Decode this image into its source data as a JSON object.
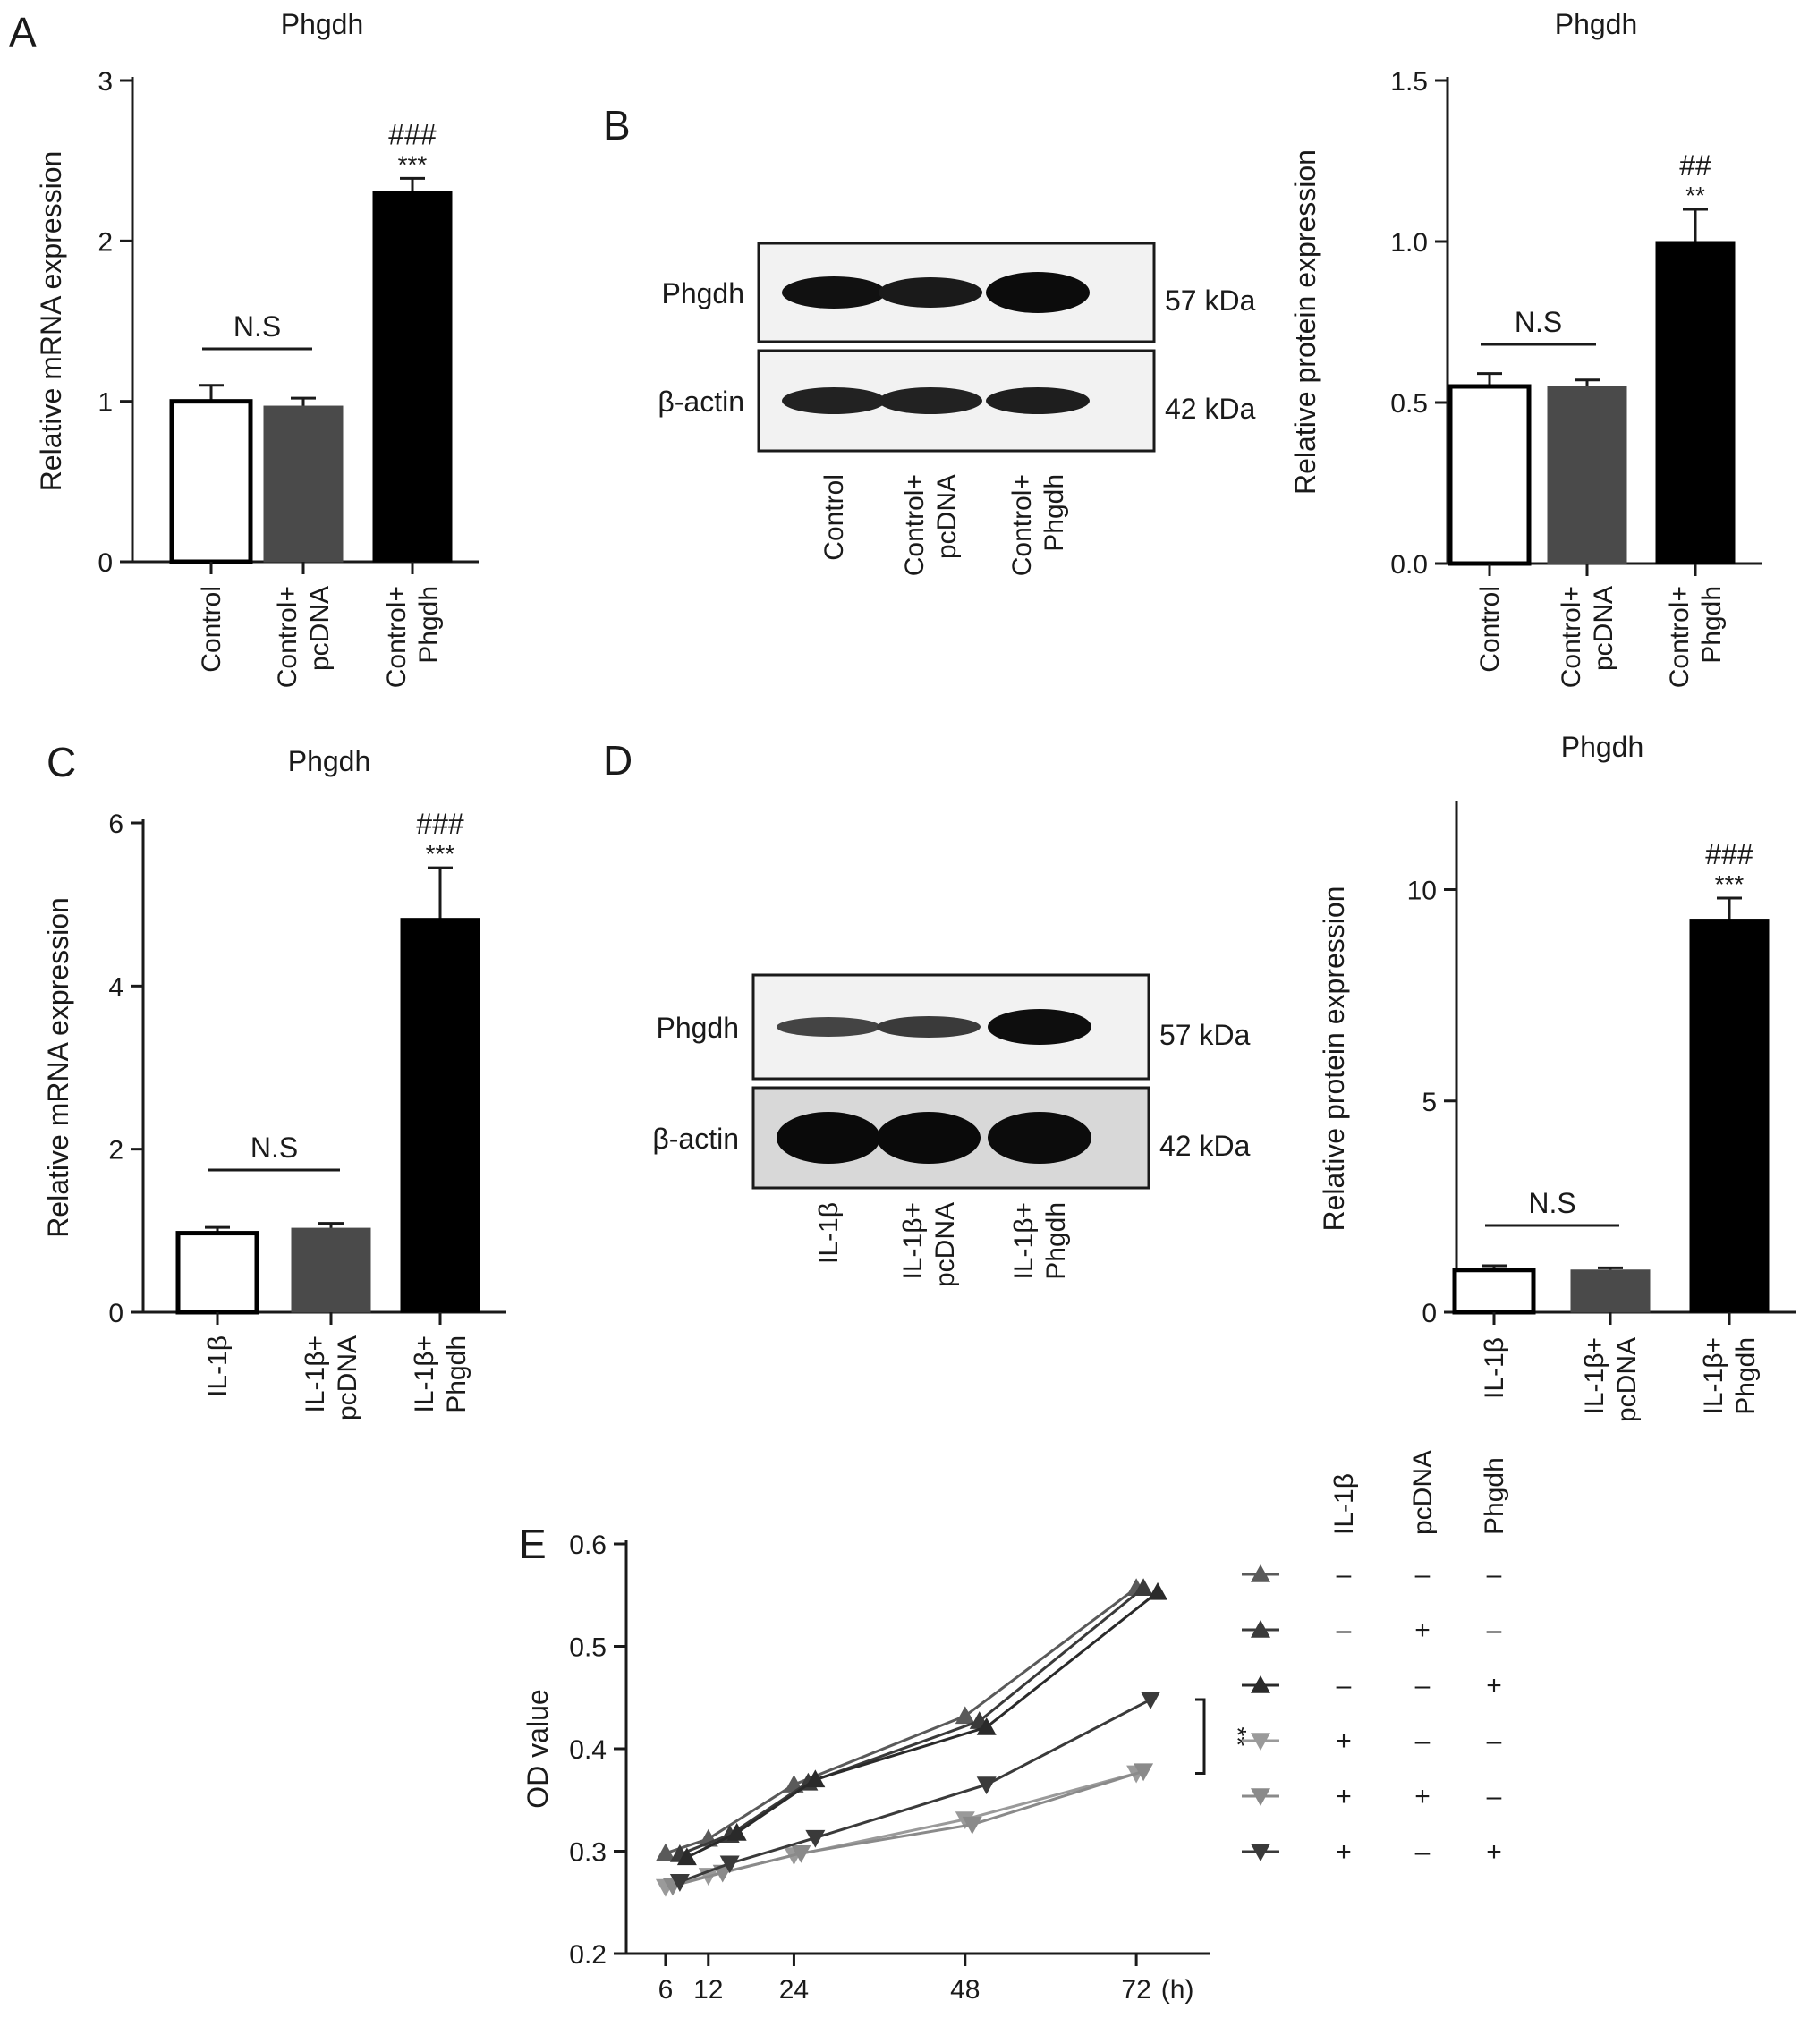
{
  "panels": {
    "A": {
      "letter": "A",
      "chart": {
        "type": "bar",
        "title": "Phgdh",
        "ylabel": "Relative mRNA expression",
        "ylim": [
          0,
          3
        ],
        "ticks": [
          "0",
          "1",
          "2",
          "3"
        ],
        "categories": [
          [
            "Control"
          ],
          [
            "Control+",
            "pcDNA"
          ],
          [
            "Control+",
            "Phgdh"
          ]
        ],
        "values": [
          1.0,
          0.97,
          2.31
        ],
        "errors": [
          0.1,
          0.05,
          0.08
        ],
        "colors": [
          "#ffffff",
          "#4a4a4a",
          "#000000"
        ],
        "significance": {
          "ns": "N.S",
          "stars": "***",
          "hashes": "###"
        }
      }
    },
    "B": {
      "letter": "B",
      "chart": {
        "type": "bar",
        "title": "Phgdh",
        "ylabel": "Relative protein expression",
        "ylim": [
          0,
          1.5
        ],
        "ticks": [
          "0.0",
          "0.5",
          "1.0",
          "1.5"
        ],
        "categories": [
          [
            "Control"
          ],
          [
            "Control+",
            "pcDNA"
          ],
          [
            "Control+",
            "Phgdh"
          ]
        ],
        "values": [
          0.55,
          0.55,
          1.0
        ],
        "errors": [
          0.04,
          0.02,
          0.1
        ],
        "colors": [
          "#ffffff",
          "#4a4a4a",
          "#000000"
        ],
        "significance": {
          "ns": "N.S",
          "stars": "**",
          "hashes": "##"
        }
      },
      "blot": {
        "rows": [
          {
            "label": "Phgdh",
            "kda": "57 kDa"
          },
          {
            "label": "β-actin",
            "kda": "42 kDa"
          }
        ],
        "lanes": [
          [
            "Control"
          ],
          [
            "Control+",
            "pcDNA"
          ],
          [
            "Control+",
            "Phgdh"
          ]
        ]
      }
    },
    "C": {
      "letter": "C",
      "chart": {
        "type": "bar",
        "title": "Phgdh",
        "ylabel": "Relative mRNA expression",
        "ylim": [
          0,
          6
        ],
        "ticks": [
          "0",
          "2",
          "4",
          "6"
        ],
        "categories": [
          [
            "IL-1β"
          ],
          [
            "IL-1β+",
            "pcDNA"
          ],
          [
            "IL-1β+",
            "Phgdh"
          ]
        ],
        "values": [
          0.97,
          1.03,
          4.83
        ],
        "errors": [
          0.07,
          0.06,
          0.62
        ],
        "colors": [
          "#ffffff",
          "#4a4a4a",
          "#000000"
        ],
        "significance": {
          "ns": "N.S",
          "stars": "***",
          "hashes": "###"
        }
      }
    },
    "D": {
      "letter": "D",
      "chart": {
        "type": "bar",
        "title": "Phgdh",
        "ylabel": "Relative protein expression",
        "ylim": [
          0,
          12
        ],
        "ticks": [
          "0",
          "5",
          "10"
        ],
        "categories": [
          [
            "IL-1β"
          ],
          [
            "IL-1β+",
            "pcDNA"
          ],
          [
            "IL-1β+",
            "Phgdh"
          ]
        ],
        "values": [
          1.0,
          1.0,
          9.3
        ],
        "errors": [
          0.1,
          0.05,
          0.5
        ],
        "colors": [
          "#ffffff",
          "#4a4a4a",
          "#000000"
        ],
        "significance": {
          "ns": "N.S",
          "stars": "***",
          "hashes": "###"
        }
      },
      "blot": {
        "rows": [
          {
            "label": "Phgdh",
            "kda": "57 kDa"
          },
          {
            "label": "β-actin",
            "kda": "42 kDa"
          }
        ],
        "lanes": [
          [
            "IL-1β"
          ],
          [
            "IL-1β+",
            "pcDNA"
          ],
          [
            "IL-1β+",
            "Phgdh"
          ]
        ]
      }
    },
    "E": {
      "letter": "E",
      "chart": {
        "type": "line",
        "ylabel": "OD value",
        "xlabel_unit": "(h)",
        "ylim": [
          0.2,
          0.6
        ],
        "yticks": [
          "0.2",
          "0.3",
          "0.4",
          "0.5",
          "0.6"
        ],
        "xticks": [
          "6",
          "12",
          "24",
          "48",
          "72"
        ],
        "significance": "**",
        "series": [
          {
            "color": "#5a5a5a",
            "marker": "up",
            "x": [
              6,
              12,
              24,
              48,
              72
            ],
            "y": [
              0.298,
              0.312,
              0.365,
              0.432,
              0.557
            ]
          },
          {
            "color": "#3a3a3a",
            "marker": "up",
            "x": [
              8,
              15,
              26,
              50,
              73
            ],
            "y": [
              0.297,
              0.316,
              0.367,
              0.427,
              0.557
            ]
          },
          {
            "color": "#2a2a2a",
            "marker": "up",
            "x": [
              9,
              16,
              27,
              51,
              75
            ],
            "y": [
              0.294,
              0.318,
              0.37,
              0.421,
              0.553
            ]
          },
          {
            "color": "#9a9a9a",
            "marker": "down",
            "x": [
              6,
              12,
              24,
              48,
              72
            ],
            "y": [
              0.265,
              0.276,
              0.296,
              0.331,
              0.376
            ]
          },
          {
            "color": "#8a8a8a",
            "marker": "down",
            "x": [
              7,
              14,
              25,
              49,
              73
            ],
            "y": [
              0.266,
              0.279,
              0.298,
              0.326,
              0.378
            ]
          },
          {
            "color": "#3a3a3a",
            "marker": "down",
            "x": [
              8,
              15,
              27,
              51,
              74
            ],
            "y": [
              0.27,
              0.288,
              0.313,
              0.365,
              0.448
            ]
          }
        ],
        "legend": {
          "columns": [
            "IL-1β",
            "pcDNA",
            "Phgdh"
          ],
          "rows": [
            [
              "–",
              "–",
              "–"
            ],
            [
              "–",
              "+",
              "–"
            ],
            [
              "–",
              "–",
              "+"
            ],
            [
              "+",
              "–",
              "–"
            ],
            [
              "+",
              "+",
              "–"
            ],
            [
              "+",
              "–",
              "+"
            ]
          ]
        }
      }
    }
  }
}
